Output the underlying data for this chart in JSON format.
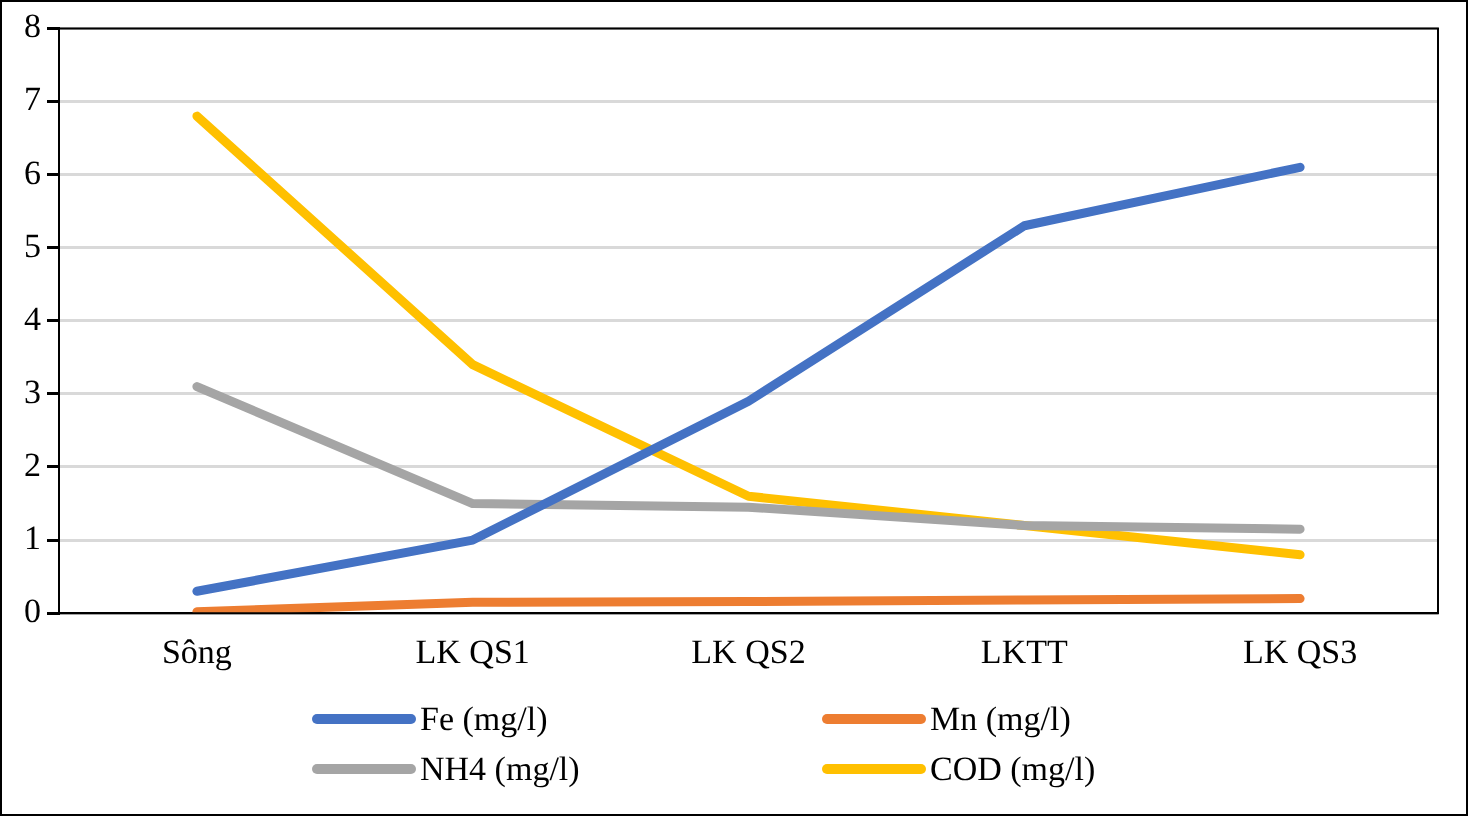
{
  "chart_data": {
    "type": "line",
    "categories": [
      "Sông",
      "LK QS1",
      "LK QS2",
      "LKTT",
      "LK QS3"
    ],
    "series": [
      {
        "name": "Fe (mg/l)",
        "color": "#4472c4",
        "values": [
          0.3,
          1.0,
          2.9,
          5.3,
          6.1
        ]
      },
      {
        "name": "Mn (mg/l)",
        "color": "#ed7d31",
        "values": [
          0.02,
          0.15,
          0.16,
          0.18,
          0.2
        ]
      },
      {
        "name": "NH4 (mg/l)",
        "color": "#a5a5a5",
        "values": [
          3.1,
          1.5,
          1.45,
          1.2,
          1.15
        ]
      },
      {
        "name": "COD (mg/l)",
        "color": "#ffc000",
        "values": [
          6.8,
          3.4,
          1.6,
          1.2,
          0.8
        ]
      }
    ],
    "ylim": [
      0,
      8
    ],
    "yticks": [
      0,
      1,
      2,
      3,
      4,
      5,
      6,
      7,
      8
    ],
    "grid": "y",
    "legend": "bottom",
    "marker": "none",
    "line_style": "solid"
  }
}
